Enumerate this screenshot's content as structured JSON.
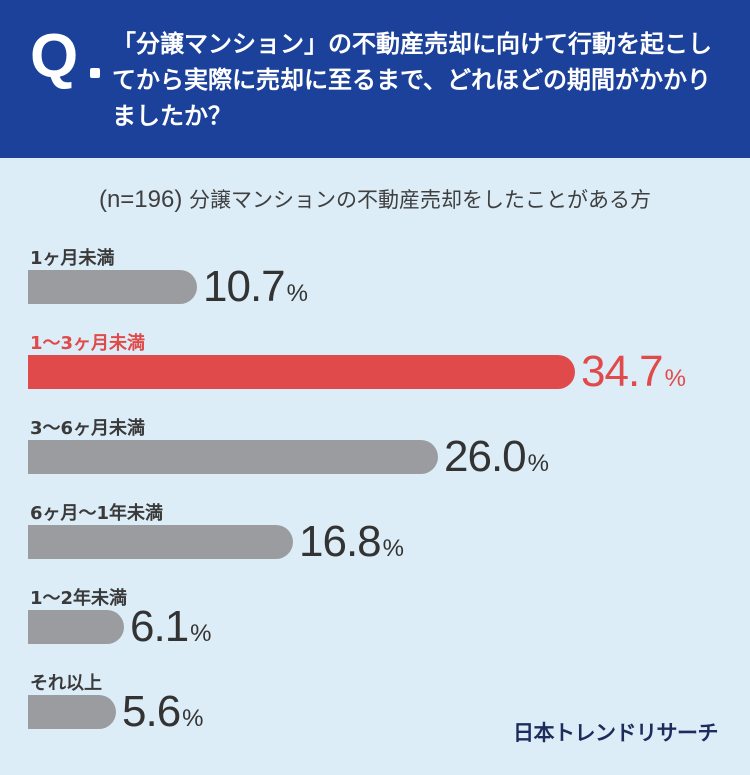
{
  "header": {
    "q_mark": "Q",
    "question": "「分譲マンション」の不動産売却に向けて行動を起こしてから実際に売却に至るまで、どれほどの期間がかかりましたか？"
  },
  "subtitle": {
    "n": "(n=196)",
    "text": "分譲マンションの不動産売却をしたことがある方"
  },
  "colors": {
    "header_bg": "#1b419a",
    "bar": "#9b9c9f",
    "highlight": "#e14a4a",
    "background": "#dcedf7"
  },
  "chart_data": {
    "type": "bar",
    "orientation": "horizontal",
    "categories": [
      "1ヶ月未満",
      "1〜3ヶ月未満",
      "3〜6ヶ月未満",
      "6ヶ月〜1年未満",
      "1〜2年未満",
      "それ以上"
    ],
    "values": [
      10.7,
      34.7,
      26.0,
      16.8,
      6.1,
      5.6
    ],
    "value_labels": [
      "10.7",
      "34.7",
      "26.0",
      "16.8",
      "6.1",
      "5.6"
    ],
    "unit": "%",
    "highlight_index": 1,
    "xlim": [
      0,
      34.7
    ]
  },
  "logo": "日本トレンドリサーチ"
}
